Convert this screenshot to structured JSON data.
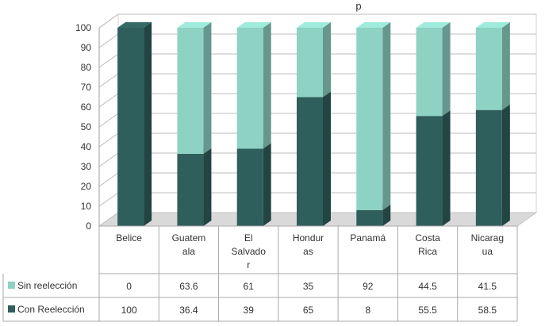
{
  "chart_data": {
    "type": "bar",
    "stacked": true,
    "three_d": true,
    "title_fragment": "p",
    "categories": [
      [
        "Belice"
      ],
      [
        "Guatem",
        "ala"
      ],
      [
        "El",
        "Salvado",
        "r"
      ],
      [
        "Hondur",
        "as"
      ],
      [
        "Panamá"
      ],
      [
        "Costa",
        "Rica"
      ],
      [
        "Nicarag",
        "ua"
      ]
    ],
    "series": [
      {
        "name": "Con Reelección",
        "color": "#2f5f5c",
        "values": [
          100,
          36.4,
          39,
          65,
          8,
          55.5,
          58.5
        ]
      },
      {
        "name": "Sin reelección",
        "color": "#8ed2c4",
        "values": [
          0,
          63.6,
          61,
          35,
          92,
          44.5,
          41.5
        ]
      }
    ],
    "table_rows": [
      {
        "label": "Sin reelección",
        "values": [
          "0",
          "63.6",
          "61",
          "35",
          "92",
          "44.5",
          "41.5"
        ]
      },
      {
        "label": "Con Reelección",
        "values": [
          "100",
          "36.4",
          "39",
          "65",
          "8",
          "55.5",
          "58.5"
        ]
      }
    ],
    "ylim": [
      0,
      100
    ],
    "yticks": [
      0,
      10,
      20,
      30,
      40,
      50,
      60,
      70,
      80,
      90,
      100
    ],
    "grid": true,
    "legend": "data-table"
  }
}
